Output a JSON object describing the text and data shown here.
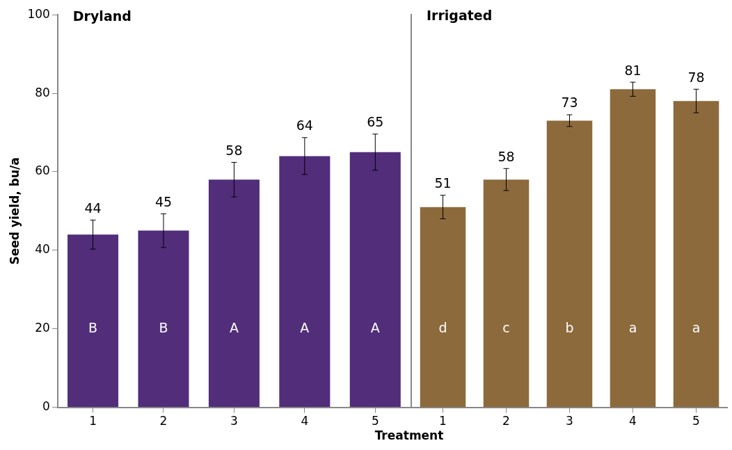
{
  "chart_data": [
    {
      "type": "bar",
      "title": "Dryland",
      "ylabel": "Seed yield, bu/a",
      "xlabel": "Treatment",
      "categories": [
        "1",
        "2",
        "3",
        "4",
        "5"
      ],
      "values": [
        44,
        45,
        58,
        64,
        65
      ],
      "errors": [
        3.7,
        4.3,
        4.4,
        4.7,
        4.6
      ],
      "color": "#512d7a",
      "ylim": [
        0,
        100
      ],
      "yticks": [
        0,
        20,
        40,
        60,
        80,
        100
      ],
      "data_labels": true,
      "annotations": [
        "B",
        "B",
        "A",
        "A",
        "A"
      ]
    },
    {
      "type": "bar",
      "title": "Irrigated",
      "categories": [
        "1",
        "2",
        "3",
        "4",
        "5"
      ],
      "values": [
        51,
        58,
        73,
        81,
        78
      ],
      "errors": [
        3,
        2.8,
        1.5,
        1.8,
        3
      ],
      "color": "#8c6a3c",
      "ylim": [
        0,
        100
      ],
      "yticks": [
        0,
        20,
        40,
        60,
        80,
        100
      ],
      "data_labels": true,
      "tick_labels": "x",
      "annotations": [
        "d",
        "c",
        "b",
        "a",
        "a"
      ]
    }
  ]
}
